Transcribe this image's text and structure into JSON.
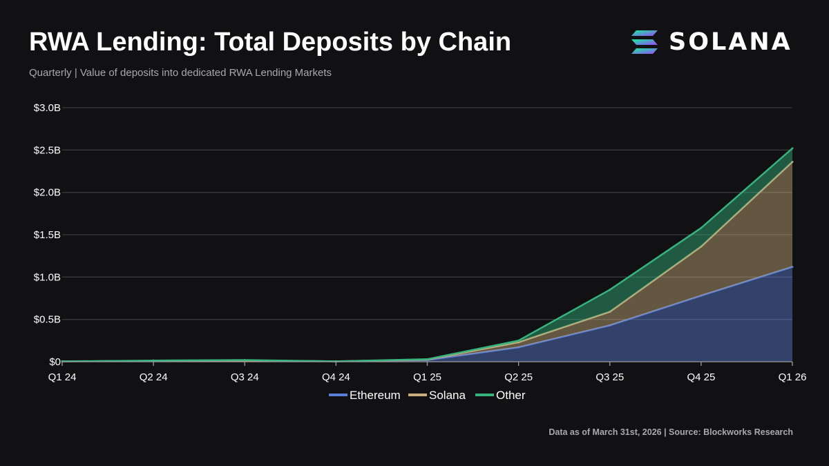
{
  "header": {
    "title": "RWA Lending: Total Deposits by Chain",
    "subtitle": "Quarterly | Value of deposits into dedicated RWA Lending Markets"
  },
  "brand": {
    "logo_text": "SOLANA",
    "logo_icon": "solana-icon",
    "gradient": [
      "#14f195",
      "#9945ff"
    ]
  },
  "footnote": "Data as of March 31st, 2026 | Source: Blockworks Research",
  "colors": {
    "background": "#111113",
    "grid": "#3a3a3e",
    "ethereum": "#5b7fd6",
    "solana": "#c9ad7d",
    "other": "#36b37e"
  },
  "chart_data": {
    "type": "area",
    "stacked": true,
    "title": "RWA Lending: Total Deposits by Chain",
    "subtitle": "Quarterly | Value of deposits into dedicated RWA Lending Markets",
    "xlabel": "",
    "ylabel": "",
    "categories": [
      "Q1 24",
      "Q2 24",
      "Q3 24",
      "Q4 24",
      "Q1 25",
      "Q2 25",
      "Q3 25",
      "Q4 25",
      "Q1 26"
    ],
    "ylim": [
      0,
      3.0
    ],
    "yticks": [
      0,
      0.5,
      1.0,
      1.5,
      2.0,
      2.5,
      3.0
    ],
    "ytick_labels": [
      "$0",
      "$0.5B",
      "$1.0B",
      "$1.5B",
      "$2.0B",
      "$2.5B",
      "$3.0B"
    ],
    "unit": "$B",
    "grid": true,
    "legend_position": "bottom-center",
    "series": [
      {
        "name": "Ethereum",
        "color": "#5b7fd6",
        "values": [
          0.005,
          0.01,
          0.015,
          0.005,
          0.02,
          0.17,
          0.43,
          0.78,
          1.12
        ]
      },
      {
        "name": "Solana",
        "color": "#c9ad7d",
        "values": [
          0.0,
          0.0,
          0.0,
          0.0,
          0.005,
          0.06,
          0.16,
          0.58,
          1.24
        ]
      },
      {
        "name": "Other",
        "color": "#36b37e",
        "values": [
          0.0,
          0.005,
          0.005,
          0.0,
          0.005,
          0.02,
          0.26,
          0.22,
          0.16
        ]
      }
    ]
  }
}
